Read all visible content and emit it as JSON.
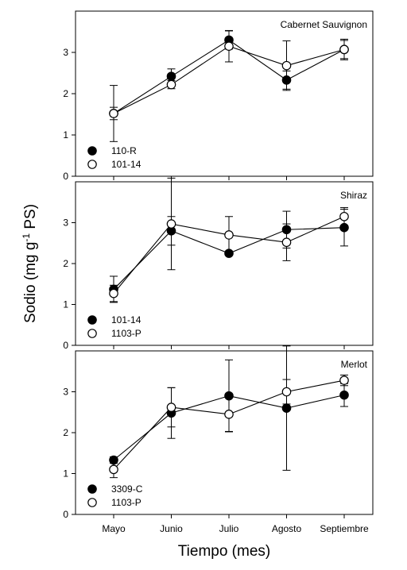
{
  "figure": {
    "xlabel": "Tiempo (mes)",
    "ylabel_main": "Sodio (mg g",
    "ylabel_sup": "-1",
    "ylabel_tail": " PS)"
  },
  "chart_data": [
    {
      "type": "line",
      "title": "Cabernet Sauvignon",
      "categories": [
        "Mayo",
        "Junio",
        "Julio",
        "Agosto",
        "Septiembre"
      ],
      "ylim": [
        0,
        4
      ],
      "yticks": [
        0,
        1,
        2,
        3
      ],
      "legend_position": "bottom-left",
      "series": [
        {
          "name": "110-R",
          "marker": "filled",
          "values": [
            1.52,
            2.42,
            3.3,
            2.33,
            3.07
          ],
          "errors": [
            0.15,
            0.18,
            0.22,
            0.22,
            0.22
          ]
        },
        {
          "name": "101-14",
          "marker": "open",
          "values": [
            1.52,
            2.22,
            3.15,
            2.68,
            3.07
          ],
          "errors": [
            0.68,
            0.1,
            0.38,
            0.6,
            0.25
          ]
        }
      ]
    },
    {
      "type": "line",
      "title": "Shiraz",
      "categories": [
        "Mayo",
        "Junio",
        "Julio",
        "Agosto",
        "Septiembre"
      ],
      "ylim": [
        0,
        4
      ],
      "yticks": [
        0,
        1,
        2,
        3
      ],
      "legend_position": "bottom-left",
      "series": [
        {
          "name": "101-14",
          "marker": "filled",
          "values": [
            1.37,
            2.8,
            2.25,
            2.83,
            2.88
          ],
          "errors": [
            0.32,
            0.35,
            0.0,
            0.45,
            0.45
          ]
        },
        {
          "name": "1103-P",
          "marker": "open",
          "values": [
            1.27,
            2.97,
            2.7,
            2.52,
            3.15
          ],
          "errors": [
            0.2,
            1.12,
            0.45,
            0.45,
            0.22
          ]
        }
      ]
    },
    {
      "type": "line",
      "title": "Merlot",
      "categories": [
        "Mayo",
        "Junio",
        "Julio",
        "Agosto",
        "Septiembre"
      ],
      "ylim": [
        0,
        4
      ],
      "yticks": [
        0,
        1,
        2,
        3
      ],
      "legend_position": "bottom-left",
      "series": [
        {
          "name": "3309-C",
          "marker": "filled",
          "values": [
            1.33,
            2.48,
            2.9,
            2.6,
            2.92
          ],
          "errors": [
            0.08,
            0.62,
            0.88,
            1.52,
            0.28
          ]
        },
        {
          "name": "1103-P",
          "marker": "open",
          "values": [
            1.1,
            2.62,
            2.45,
            3.0,
            3.28
          ],
          "errors": [
            0.2,
            0.48,
            0.42,
            0.3,
            0.13
          ]
        }
      ]
    }
  ]
}
